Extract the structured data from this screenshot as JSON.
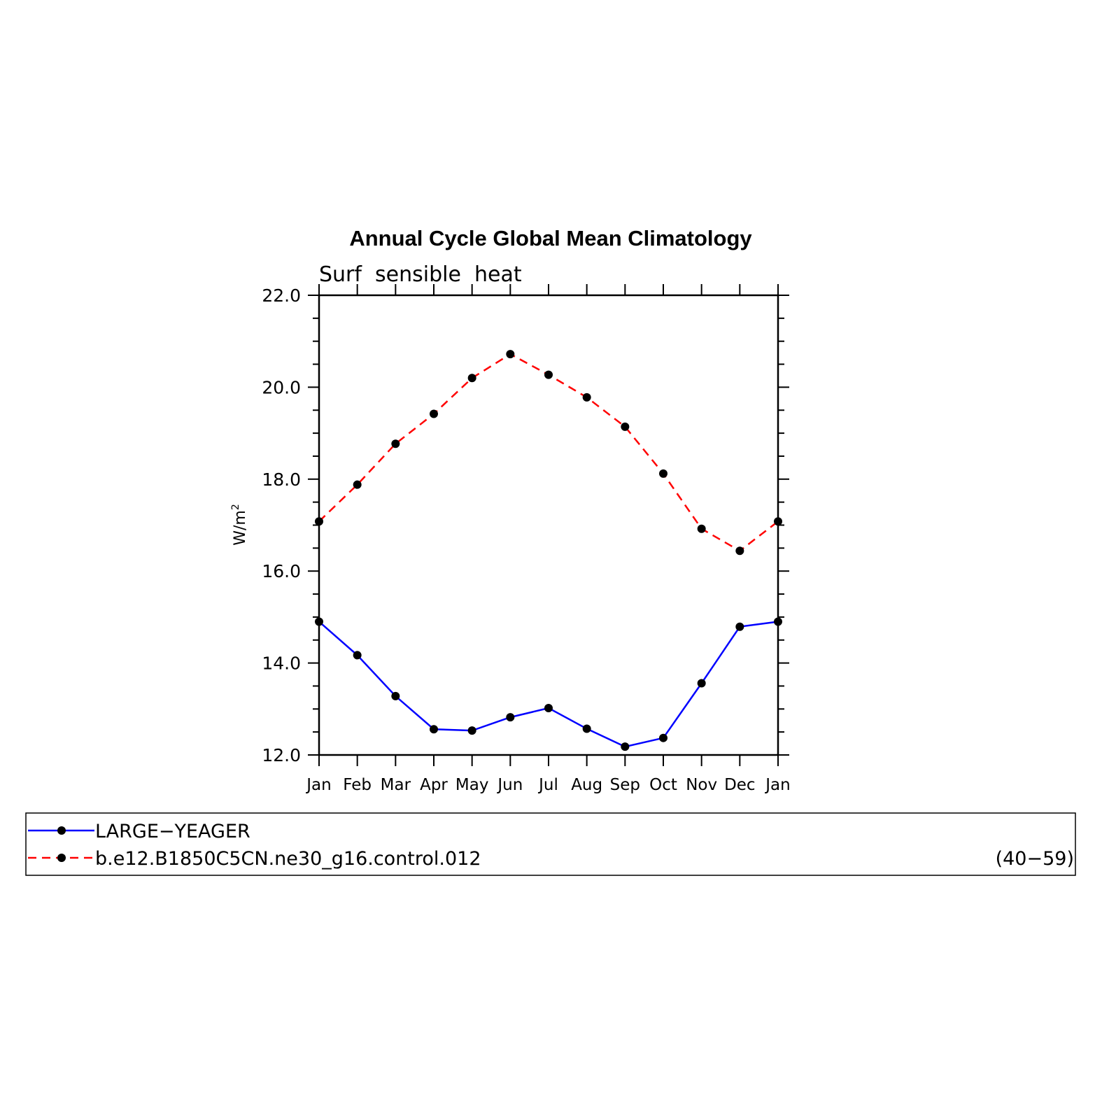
{
  "chart_data": {
    "type": "line",
    "title": "Annual Cycle Global Mean Climatology",
    "subtitle": "Surf  sensible  heat",
    "ylabel": "W/m",
    "ylabel_superscript": "2",
    "xlabel": "",
    "categories": [
      "Jan",
      "Feb",
      "Mar",
      "Apr",
      "May",
      "Jun",
      "Jul",
      "Aug",
      "Sep",
      "Oct",
      "Nov",
      "Dec",
      "Jan"
    ],
    "ylim": [
      12.0,
      22.0
    ],
    "y_ticks": [
      "12.0",
      "14.0",
      "16.0",
      "18.0",
      "20.0",
      "22.0"
    ],
    "grid": false,
    "legend_position": "bottom",
    "series": [
      {
        "name": "LARGE−YEAGER",
        "color": "#0000ff",
        "line_style": "solid",
        "marker": "filled-circle",
        "values": [
          14.9,
          14.17,
          13.28,
          12.56,
          12.53,
          12.82,
          13.02,
          12.57,
          12.18,
          12.37,
          13.56,
          14.79,
          14.9
        ]
      },
      {
        "name": "b.e12.B1850C5CN.ne30_g16.control.012",
        "note": "(40−59)",
        "color": "#ff0000",
        "line_style": "dashed",
        "marker": "filled-circle",
        "values": [
          17.08,
          17.88,
          18.77,
          19.42,
          20.2,
          20.72,
          20.27,
          19.78,
          19.14,
          18.12,
          16.92,
          16.44,
          17.08
        ]
      }
    ]
  }
}
